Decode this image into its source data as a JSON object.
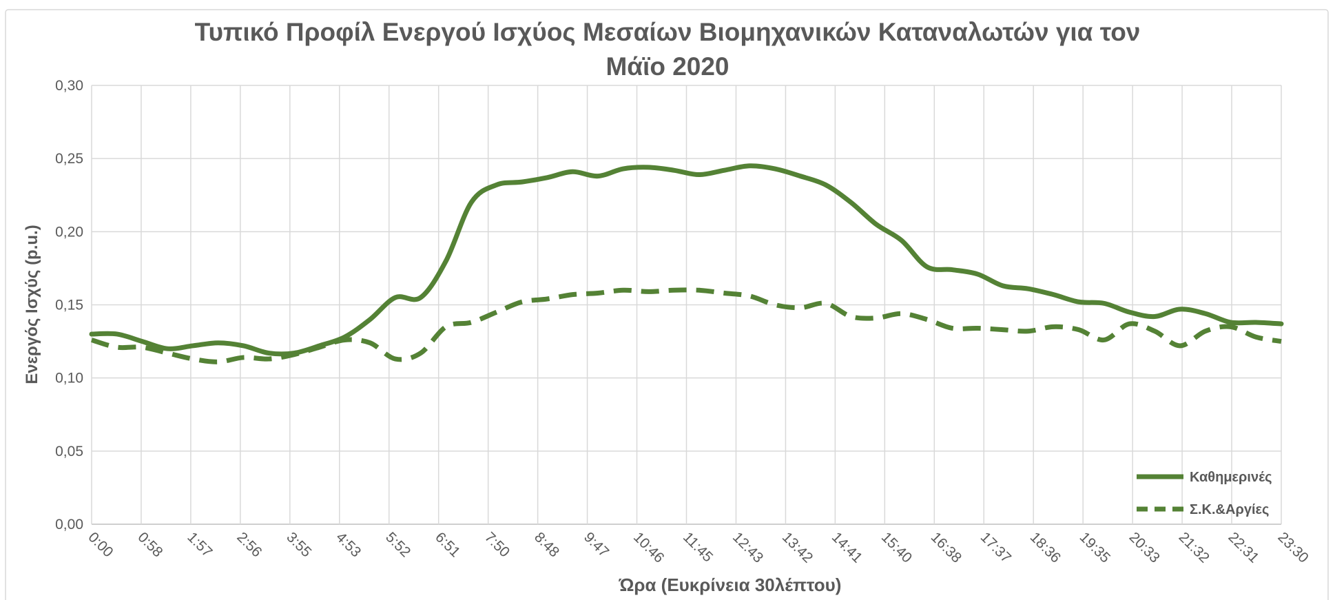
{
  "chart_data": {
    "type": "line",
    "title": "Τυπικό Προφίλ Ενεργού Ισχύος Μεσαίων Βιομηχανικών Καταναλωτών για τον Μάϊο 2020",
    "x_label": "Ώρα (Ευκρίνεια 30λέπτου)",
    "y_label": "Ενεργός Ισχύς (p.u.)",
    "x": [
      0,
      30,
      60,
      90,
      120,
      150,
      180,
      210,
      240,
      270,
      300,
      330,
      360,
      390,
      420,
      450,
      480,
      510,
      540,
      570,
      600,
      630,
      660,
      690,
      720,
      750,
      780,
      810,
      840,
      870,
      900,
      930,
      960,
      990,
      1020,
      1050,
      1080,
      1110,
      1140,
      1170,
      1200,
      1230,
      1260,
      1290,
      1320,
      1350,
      1380,
      1410
    ],
    "xlim": [
      0,
      1410
    ],
    "xticks": [
      {
        "value": 0,
        "label": "0:00"
      },
      {
        "value": 58.75,
        "label": "0:58"
      },
      {
        "value": 117.5,
        "label": "1:57"
      },
      {
        "value": 176.25,
        "label": "2:56"
      },
      {
        "value": 235,
        "label": "3:55"
      },
      {
        "value": 293.75,
        "label": "4:53"
      },
      {
        "value": 352.5,
        "label": "5:52"
      },
      {
        "value": 411.25,
        "label": "6:51"
      },
      {
        "value": 470,
        "label": "7:50"
      },
      {
        "value": 528.75,
        "label": "8:48"
      },
      {
        "value": 587.5,
        "label": "9:47"
      },
      {
        "value": 646.25,
        "label": "10:46"
      },
      {
        "value": 705,
        "label": "11:45"
      },
      {
        "value": 763.75,
        "label": "12:43"
      },
      {
        "value": 822.5,
        "label": "13:42"
      },
      {
        "value": 881.25,
        "label": "14:41"
      },
      {
        "value": 940,
        "label": "15:40"
      },
      {
        "value": 998.75,
        "label": "16:38"
      },
      {
        "value": 1057.5,
        "label": "17:37"
      },
      {
        "value": 1116.25,
        "label": "18:36"
      },
      {
        "value": 1175,
        "label": "19:35"
      },
      {
        "value": 1233.75,
        "label": "20:33"
      },
      {
        "value": 1292.5,
        "label": "21:32"
      },
      {
        "value": 1351.25,
        "label": "22:31"
      },
      {
        "value": 1410,
        "label": "23:30"
      }
    ],
    "ylim": [
      0,
      0.3
    ],
    "yticks": [
      {
        "value": 0,
        "label": "0,00"
      },
      {
        "value": 0.05,
        "label": "0,05"
      },
      {
        "value": 0.1,
        "label": "0,10"
      },
      {
        "value": 0.15,
        "label": "0,15"
      },
      {
        "value": 0.2,
        "label": "0,20"
      },
      {
        "value": 0.25,
        "label": "0,25"
      },
      {
        "value": 0.3,
        "label": "0,30"
      }
    ],
    "grid": true,
    "legend": "lower right",
    "series": [
      {
        "name": "Καθημερινές",
        "color": "#548235",
        "dash": false,
        "values": [
          0.13,
          0.13,
          0.125,
          0.12,
          0.122,
          0.124,
          0.122,
          0.117,
          0.117,
          0.122,
          0.128,
          0.14,
          0.155,
          0.155,
          0.18,
          0.22,
          0.232,
          0.234,
          0.237,
          0.241,
          0.238,
          0.243,
          0.244,
          0.242,
          0.239,
          0.242,
          0.245,
          0.243,
          0.238,
          0.232,
          0.22,
          0.205,
          0.194,
          0.176,
          0.174,
          0.171,
          0.163,
          0.161,
          0.157,
          0.152,
          0.151,
          0.145,
          0.142,
          0.147,
          0.144,
          0.138,
          0.138,
          0.137
        ]
      },
      {
        "name": "Σ.Κ.&Αργίες",
        "color": "#548235",
        "dash": true,
        "values": [
          0.126,
          0.121,
          0.121,
          0.117,
          0.113,
          0.111,
          0.114,
          0.113,
          0.116,
          0.121,
          0.126,
          0.124,
          0.113,
          0.117,
          0.135,
          0.138,
          0.145,
          0.152,
          0.154,
          0.157,
          0.158,
          0.16,
          0.159,
          0.16,
          0.16,
          0.158,
          0.156,
          0.15,
          0.148,
          0.151,
          0.142,
          0.141,
          0.144,
          0.14,
          0.134,
          0.134,
          0.133,
          0.132,
          0.135,
          0.133,
          0.126,
          0.137,
          0.132,
          0.122,
          0.132,
          0.135,
          0.128,
          0.125
        ]
      }
    ]
  }
}
